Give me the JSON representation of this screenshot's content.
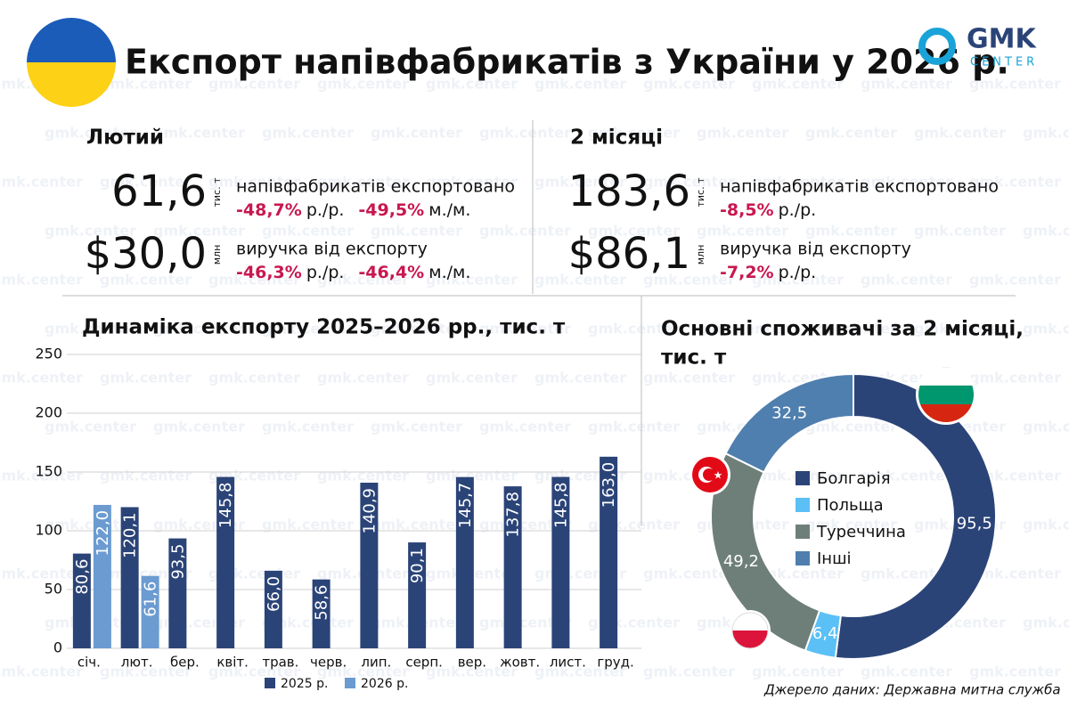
{
  "header": {
    "title": "Експорт напівфабрикатів з України у 2026 р.",
    "logo": "GMK",
    "logo_sub": "CENTER",
    "watermark": "gmk.center"
  },
  "stats": [
    {
      "period": "Лютий",
      "rows": [
        {
          "value": "61,6",
          "unit": "тис. т",
          "label": "напівфабрикатів експортовано",
          "changes": [
            {
              "value": "-48,7%",
              "suffix": "р./р."
            },
            {
              "value": "-49,5%",
              "suffix": "м./м."
            }
          ]
        },
        {
          "value": "$30,0",
          "unit": "млн",
          "label": "виручка від експорту",
          "changes": [
            {
              "value": "-46,3%",
              "suffix": "р./р."
            },
            {
              "value": "-46,4%",
              "suffix": "м./м."
            }
          ]
        }
      ]
    },
    {
      "period": "2 місяці",
      "rows": [
        {
          "value": "183,6",
          "unit": "тис. т",
          "label": "напівфабрикатів експортовано",
          "changes": [
            {
              "value": "-8,5%",
              "suffix": "р./р."
            }
          ]
        },
        {
          "value": "$86,1",
          "unit": "млн",
          "label": "виручка від експорту",
          "changes": [
            {
              "value": "-7,2%",
              "suffix": "р./р."
            }
          ]
        }
      ]
    }
  ],
  "chart_data": [
    {
      "type": "bar",
      "title": "Динаміка експорту 2025–2026 рр., тис. т",
      "categories": [
        "січ.",
        "лют.",
        "бер.",
        "квіт.",
        "трав.",
        "черв.",
        "лип.",
        "серп.",
        "вер.",
        "жовт.",
        "лист.",
        "груд."
      ],
      "series": [
        {
          "name": "2025 р.",
          "color": "#2b4478",
          "values": [
            80.6,
            120.1,
            93.5,
            145.8,
            66.0,
            58.6,
            140.9,
            90.1,
            145.7,
            137.8,
            145.8,
            163.0
          ],
          "value_labels": [
            "80,6",
            "120,1",
            "93,5",
            "145,8",
            "66,0",
            "58,6",
            "140,9",
            "90,1",
            "145,7",
            "137,8",
            "145,8",
            "163,0"
          ]
        },
        {
          "name": "2026 р.",
          "color": "#6b9bd1",
          "values": [
            122.0,
            61.6,
            null,
            null,
            null,
            null,
            null,
            null,
            null,
            null,
            null,
            null
          ],
          "value_labels": [
            "122,0",
            "61,6",
            null,
            null,
            null,
            null,
            null,
            null,
            null,
            null,
            null,
            null
          ]
        }
      ],
      "ylim": [
        0,
        250
      ],
      "yticks": [
        0,
        50,
        100,
        150,
        200,
        250
      ],
      "grid": true
    },
    {
      "type": "pie",
      "title": [
        "Основні споживачі за 2 місяці,",
        "тис. т"
      ],
      "categories": [
        "Болгарія",
        "Польща",
        "Туреччина",
        "Інші"
      ],
      "values": [
        95.5,
        6.4,
        49.2,
        32.5
      ],
      "value_labels": [
        "95,5",
        "6,4",
        "49,2",
        "32,5"
      ],
      "colors": [
        "#2b4478",
        "#5bc0f5",
        "#6e7f79",
        "#4f7fae"
      ]
    }
  ],
  "source": "Джерело даних: Державна митна служба"
}
